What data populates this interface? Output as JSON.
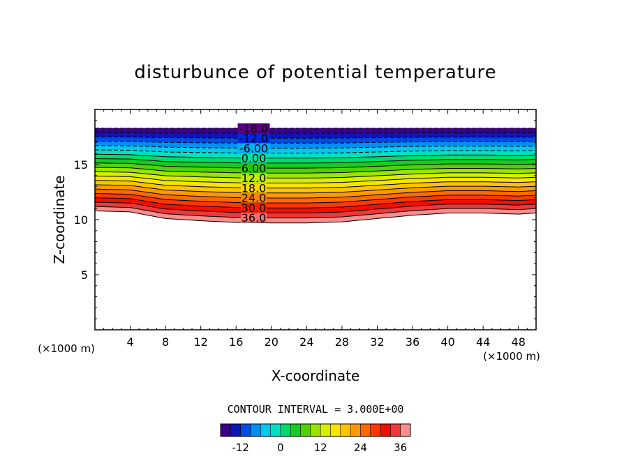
{
  "chart_data": {
    "type": "contour",
    "title": "disturbunce of potential temperature",
    "xlabel": "X-coordinate",
    "ylabel": "Z-coordinate",
    "x_unit": "(×1000 m)",
    "z_unit": "(×1000 m)",
    "xlim": [
      0,
      50
    ],
    "ylim": [
      0,
      20
    ],
    "x_ticks": [
      4,
      8,
      12,
      16,
      20,
      24,
      28,
      32,
      36,
      40,
      44,
      48
    ],
    "y_ticks": [
      5,
      10,
      15
    ],
    "contour_interval_label": "CONTOUR INTERVAL = 3.000E+00",
    "contour_interval": 3,
    "value_range": [
      -18,
      39
    ],
    "contour_labels": [
      "-18.0",
      "-12.0",
      "-6.00",
      "0.00",
      "6.00",
      "12.0",
      "18.0",
      "24.0",
      "30.0",
      "36.0"
    ],
    "contour_label_values": [
      -18,
      -12,
      -6,
      0,
      6,
      12,
      18,
      24,
      30,
      36
    ],
    "colorbar_ticks": [
      "-12",
      "0",
      "12",
      "24",
      "36"
    ],
    "colorbar_tick_values": [
      -12,
      0,
      12,
      24,
      36
    ],
    "field_top_z": 18.3,
    "field_bottom_z": [
      [
        0,
        10.8
      ],
      [
        4,
        10.7
      ],
      [
        8,
        10.1
      ],
      [
        12,
        9.9
      ],
      [
        16,
        9.75
      ],
      [
        20,
        9.7
      ],
      [
        24,
        9.7
      ],
      [
        28,
        9.8
      ],
      [
        32,
        10.1
      ],
      [
        36,
        10.4
      ],
      [
        40,
        10.6
      ],
      [
        44,
        10.6
      ],
      [
        48,
        10.5
      ],
      [
        50,
        10.6
      ]
    ],
    "grid": false,
    "colorbar_position": "bottom"
  }
}
